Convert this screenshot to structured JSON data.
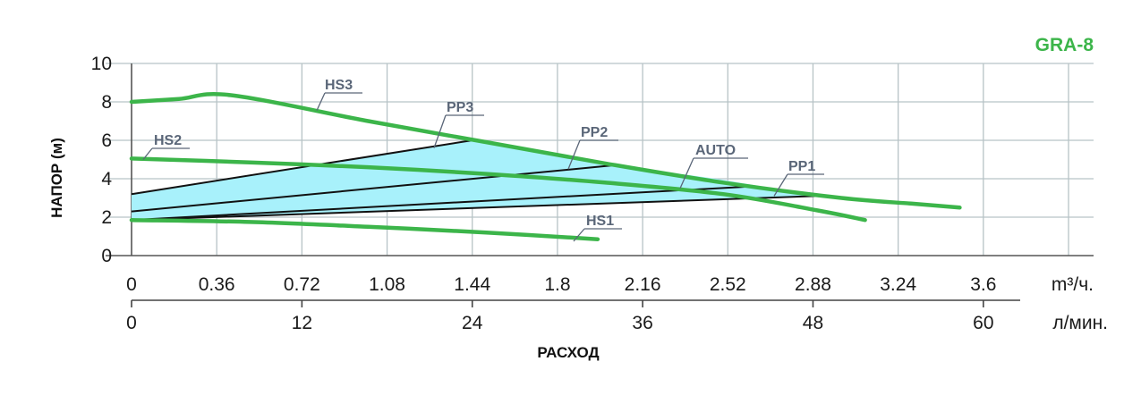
{
  "model_label": "GRA-8",
  "colors": {
    "accent_green": "#3cb54a",
    "control_lines": "#111111",
    "control_fill": "#a8f1fb",
    "grid": "#b7c3c6",
    "label": "#5a6678"
  },
  "chart_data": {
    "type": "line",
    "title": "GRA-8",
    "ylabel": "НАПОР (м)",
    "xlabel": "РАСХОД",
    "ylim": [
      0,
      10
    ],
    "xlim": [
      0,
      3.9
    ],
    "x_unit": "m³/ч.",
    "x2_unit": "л/мин.",
    "grid": true,
    "y_ticks": [
      "0",
      "2",
      "4",
      "6",
      "8",
      "10"
    ],
    "x_ticks": [
      "0",
      "0.36",
      "0.72",
      "1.08",
      "1.44",
      "1.8",
      "2.16",
      "2.52",
      "2.88",
      "3.24",
      "3.6"
    ],
    "x2_ticks": [
      "0",
      "12",
      "24",
      "36",
      "48",
      "60"
    ],
    "series": [
      {
        "name": "HS3",
        "style": "pump",
        "x": [
          0,
          0.2,
          0.42,
          1.0,
          1.5,
          2.0,
          2.5,
          3.0,
          3.3,
          3.5
        ],
        "y": [
          8.0,
          8.15,
          8.35,
          7.0,
          5.9,
          4.8,
          3.8,
          3.0,
          2.7,
          2.5
        ]
      },
      {
        "name": "HS2",
        "style": "pump",
        "x": [
          0,
          0.5,
          1.0,
          1.5,
          2.0,
          2.5,
          2.9,
          3.1
        ],
        "y": [
          5.05,
          4.85,
          4.6,
          4.25,
          3.8,
          3.2,
          2.35,
          1.85
        ]
      },
      {
        "name": "HS1",
        "style": "pump",
        "x": [
          0,
          0.5,
          1.0,
          1.5,
          1.97
        ],
        "y": [
          1.85,
          1.75,
          1.5,
          1.2,
          0.85
        ]
      },
      {
        "name": "PP3",
        "style": "control",
        "x": [
          0,
          1.44
        ],
        "y": [
          3.2,
          6.0
        ]
      },
      {
        "name": "PP2",
        "style": "control",
        "x": [
          0,
          2.04
        ],
        "y": [
          2.3,
          4.7
        ]
      },
      {
        "name": "AUTO",
        "style": "control",
        "x": [
          0,
          2.62
        ],
        "y": [
          1.85,
          3.6
        ]
      },
      {
        "name": "PP1",
        "style": "control",
        "x": [
          0,
          2.9
        ],
        "y": [
          1.85,
          3.1
        ]
      }
    ]
  }
}
